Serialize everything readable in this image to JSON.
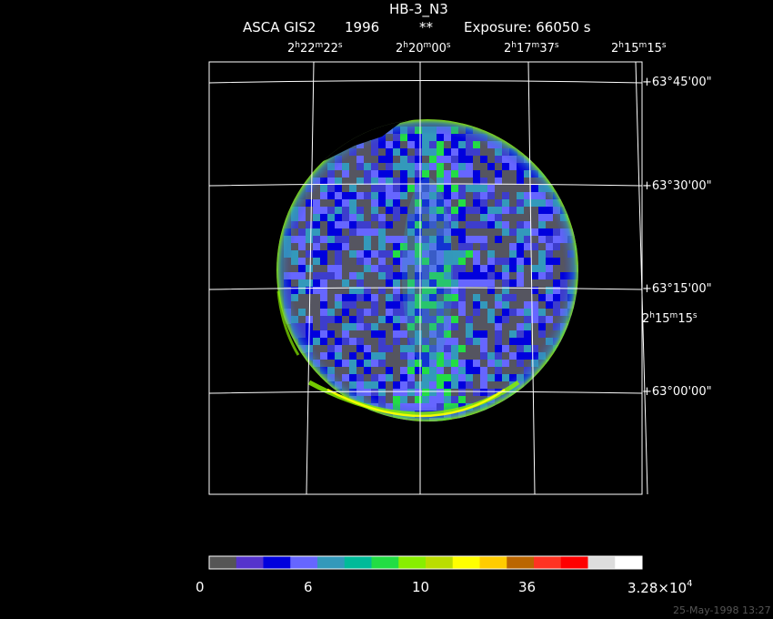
{
  "header": {
    "object_name": "HB-3_N3",
    "instrument": "ASCA GIS2",
    "year": "1996",
    "flag": "**",
    "exposure": "Exposure: 66050 s"
  },
  "ra_labels": [
    {
      "h": "2",
      "m": "22",
      "s": "22"
    },
    {
      "h": "2",
      "m": "20",
      "s": "00"
    },
    {
      "h": "2",
      "m": "17",
      "s": "37"
    },
    {
      "h": "2",
      "m": "15",
      "s": "15"
    }
  ],
  "ra_side_label": {
    "h": "2",
    "m": "15",
    "s": "15"
  },
  "dec_labels": [
    "+63°45'00\"",
    "+63°30'00\"",
    "+63°15'00\"",
    "+63°00'00\""
  ],
  "colorbar": {
    "colors": [
      "#555555",
      "#5533cc",
      "#0000dd",
      "#6666ff",
      "#3399bb",
      "#00bb99",
      "#22dd44",
      "#88ee00",
      "#bbdd00",
      "#ffff00",
      "#ffcc00",
      "#bb6600",
      "#ff3322",
      "#ff0000",
      "#dddddd",
      "#ffffff"
    ],
    "tick_labels": [
      "0",
      "6",
      "10",
      "36"
    ],
    "max_mantissa": "3.28×10",
    "max_exponent": "4"
  },
  "footer": {
    "date": "25-May-1998 13:27"
  }
}
